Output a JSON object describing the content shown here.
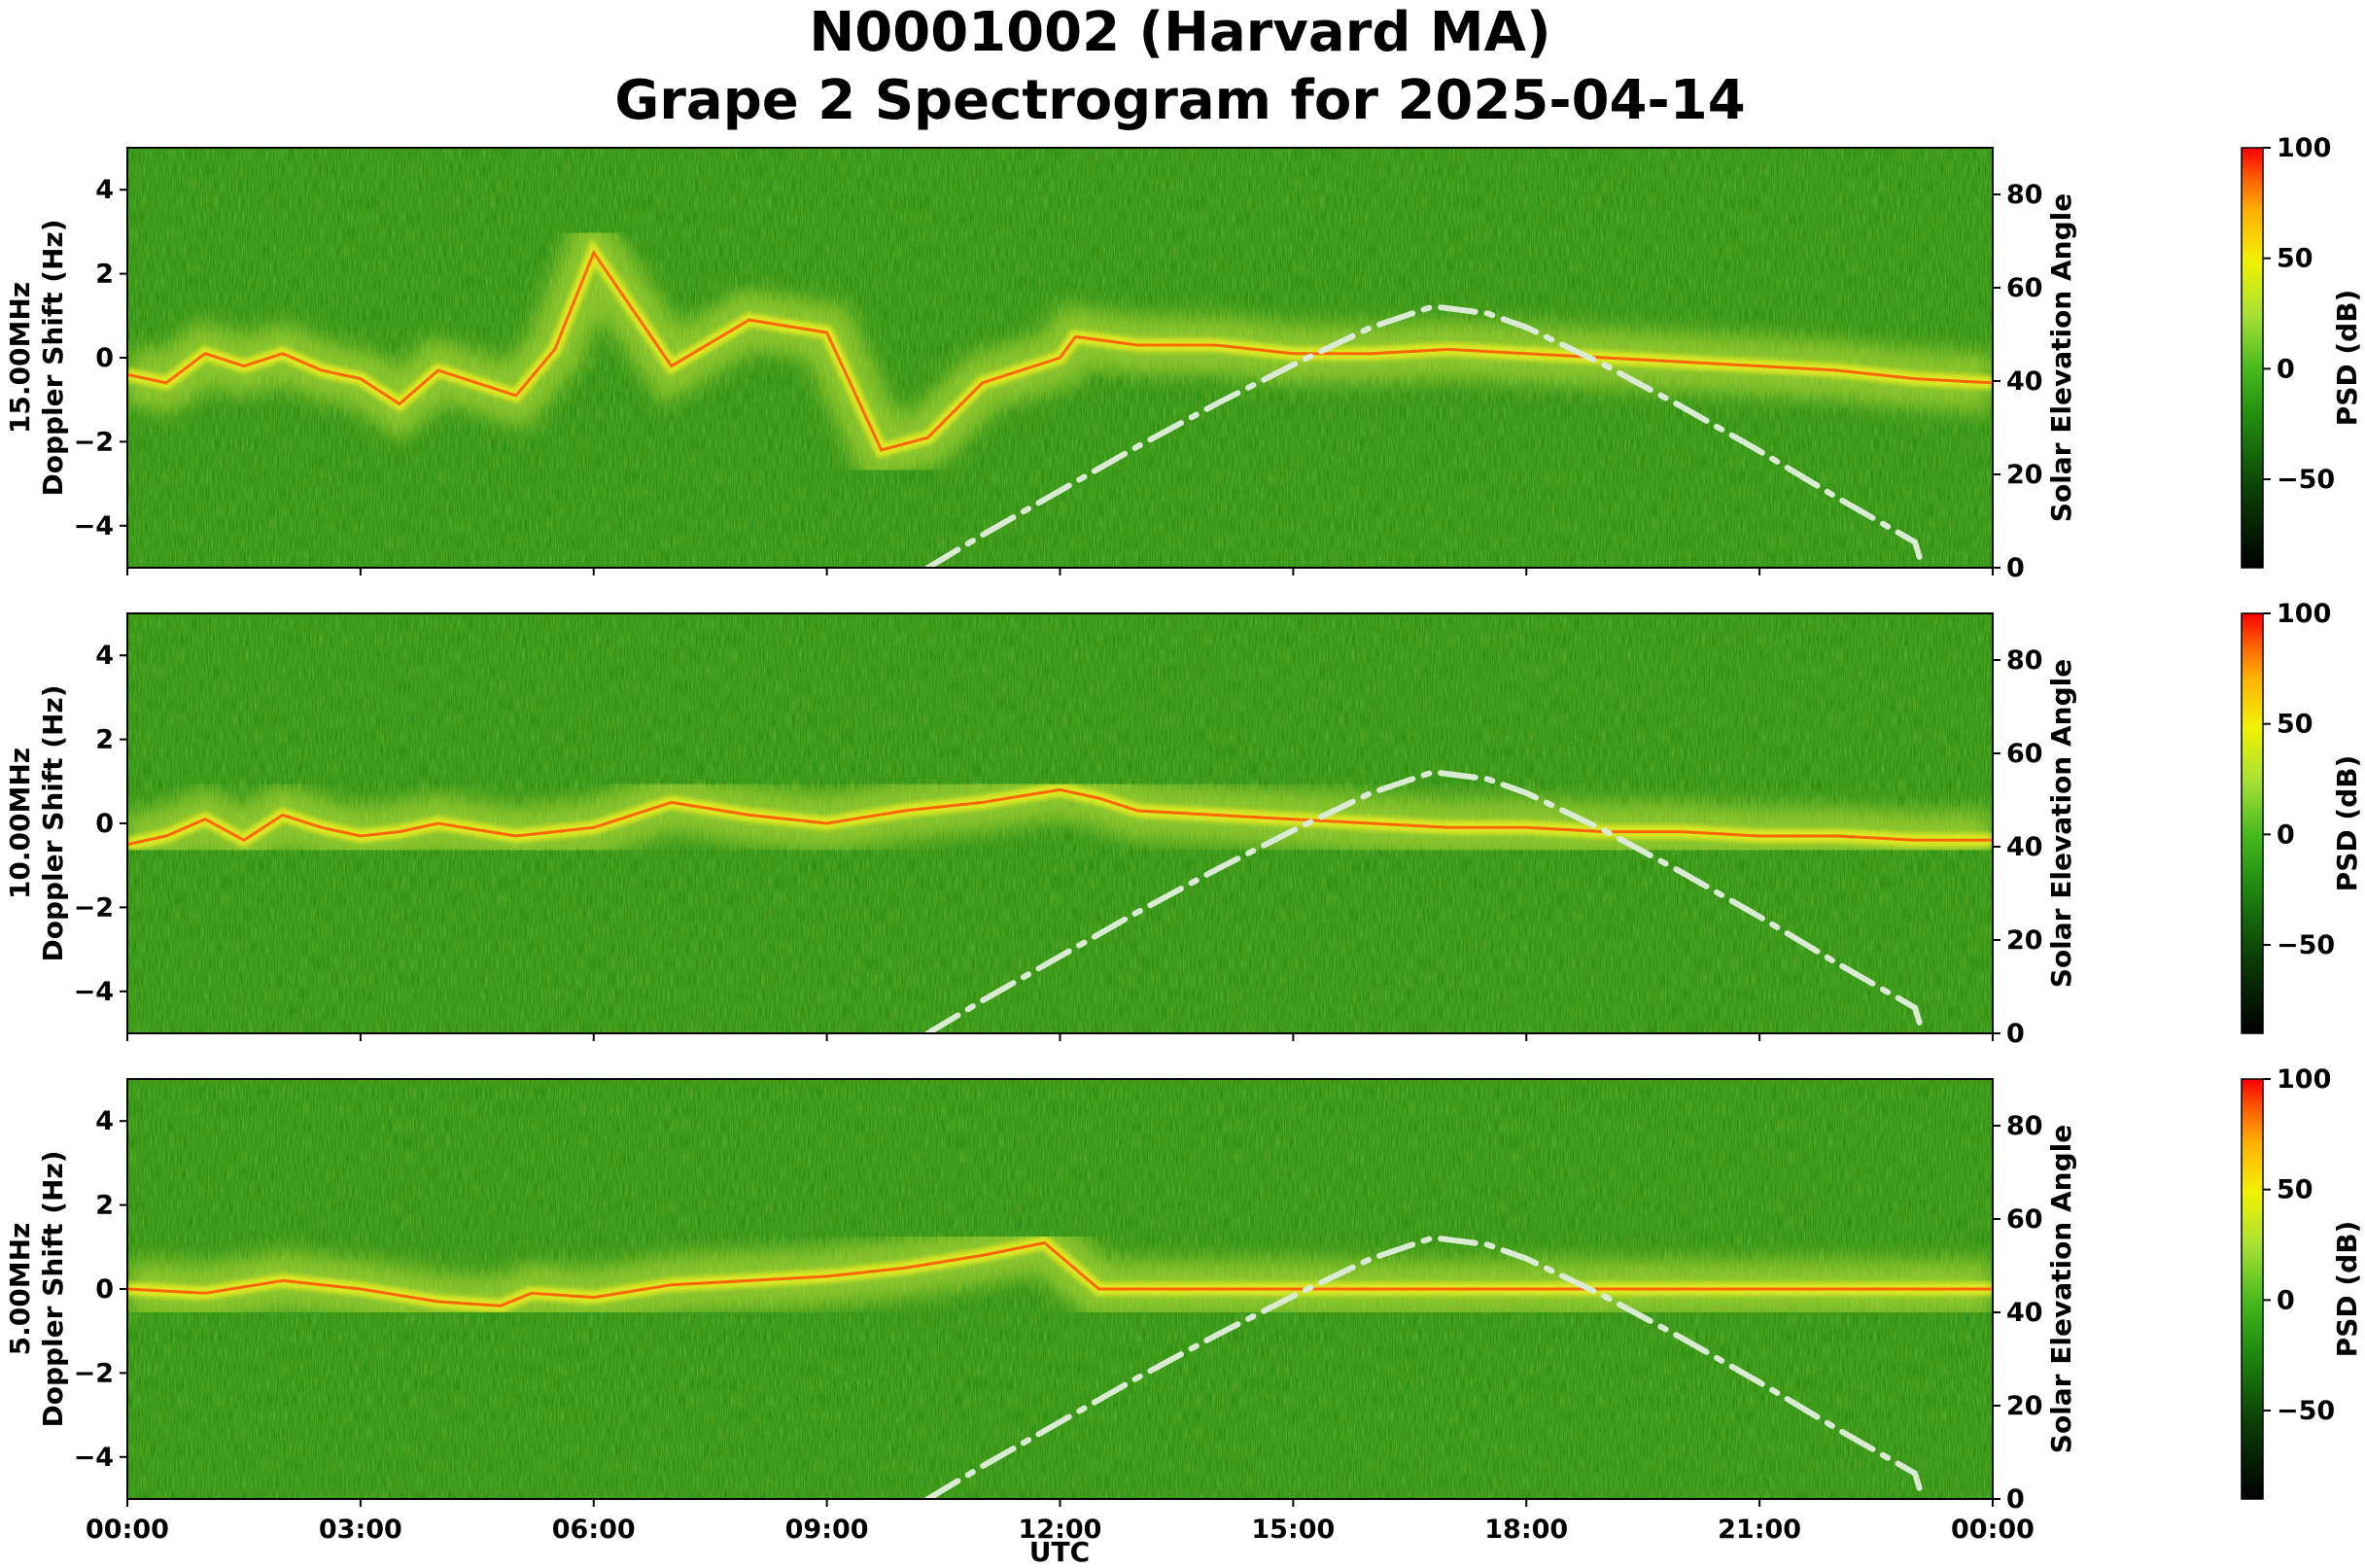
{
  "figure": {
    "title_line1": "N0001002 (Harvard MA)",
    "title_line2": "Grape 2 Spectrogram for 2025-04-14"
  },
  "colors": {
    "spectrogram_base": "#2e8f12",
    "solar_curve": "#d9ecd3",
    "colorbar_stops": [
      "#000000",
      "#0b3d06",
      "#1f8a0f",
      "#46b81c",
      "#a6e034",
      "#f2f200",
      "#ffb000",
      "#ff5a00",
      "#ff0000"
    ]
  },
  "chart_data": {
    "type": "heatmap",
    "x_axis_label": "UTC",
    "x_ticks": [
      "00:00",
      "03:00",
      "06:00",
      "09:00",
      "12:00",
      "15:00",
      "18:00",
      "21:00",
      "00:00"
    ],
    "x_range_hours": [
      0,
      24
    ],
    "y_ticks_left": [
      "−4",
      "−2",
      "0",
      "2",
      "4"
    ],
    "y_tick_values_left": [
      -4,
      -2,
      0,
      2,
      4
    ],
    "y_range_left": [
      -5,
      5
    ],
    "y_ticks_right": [
      "0",
      "20",
      "40",
      "60",
      "80"
    ],
    "y_tick_values_right": [
      0,
      20,
      40,
      60,
      80
    ],
    "y_range_right": [
      0,
      90
    ],
    "right_axis_label": "Solar Elevation Angle",
    "colorbar": {
      "label": "PSD (dB)",
      "ticks": [
        "100",
        "50",
        "0",
        "−50"
      ],
      "tick_values": [
        100,
        50,
        0,
        -50
      ],
      "range": [
        -90,
        100
      ]
    },
    "solar_elevation": {
      "line_style": "dash-dot",
      "hours": [
        10.3,
        11,
        12,
        13,
        14,
        15,
        16,
        16.8,
        17.5,
        18,
        19,
        20,
        21,
        22,
        23,
        23.1
      ],
      "degrees": [
        0,
        7,
        16.5,
        26,
        35,
        43.5,
        51.5,
        56,
        54.5,
        51.5,
        43.5,
        34.5,
        25,
        15,
        5.5,
        0
      ]
    },
    "panels": [
      {
        "ylabel_freq": "15.00MHz",
        "ylabel_axis": "Doppler Shift (Hz)",
        "trace_hours": [
          0,
          0.5,
          1,
          1.5,
          2,
          2.5,
          3,
          3.5,
          4,
          5,
          5.5,
          6,
          7,
          8,
          9,
          9.7,
          10.3,
          11,
          12,
          12.2,
          13,
          14,
          15,
          16,
          17,
          18,
          19,
          20,
          21,
          22,
          23,
          24
        ],
        "trace_hz": [
          -0.4,
          -0.6,
          0.1,
          -0.2,
          0.1,
          -0.3,
          -0.5,
          -1.1,
          -0.3,
          -0.9,
          0.2,
          2.5,
          -0.2,
          0.9,
          0.6,
          -2.2,
          -1.9,
          -0.6,
          0.0,
          0.5,
          0.3,
          0.3,
          0.1,
          0.1,
          0.2,
          0.1,
          0.0,
          -0.1,
          -0.2,
          -0.3,
          -0.5,
          -0.6
        ]
      },
      {
        "ylabel_freq": "10.00MHz",
        "ylabel_axis": "Doppler Shift (Hz)",
        "trace_hours": [
          0,
          0.5,
          1,
          1.5,
          2,
          2.5,
          3,
          3.5,
          4,
          5,
          6,
          7,
          8,
          9,
          10,
          11,
          12,
          12.5,
          13,
          14,
          15,
          16,
          17,
          18,
          19,
          20,
          21,
          22,
          23,
          24
        ],
        "trace_hz": [
          -0.5,
          -0.3,
          0.1,
          -0.4,
          0.2,
          -0.1,
          -0.3,
          -0.2,
          0.0,
          -0.3,
          -0.1,
          0.5,
          0.2,
          0.0,
          0.3,
          0.5,
          0.8,
          0.6,
          0.3,
          0.2,
          0.1,
          0.0,
          -0.1,
          -0.1,
          -0.2,
          -0.2,
          -0.3,
          -0.3,
          -0.4,
          -0.4
        ]
      },
      {
        "ylabel_freq": "5.00MHz",
        "ylabel_axis": "Doppler Shift (Hz)",
        "trace_hours": [
          0,
          1,
          2,
          3,
          4,
          4.8,
          5.2,
          6,
          7,
          8,
          9,
          10,
          11,
          11.8,
          12.5,
          14,
          16,
          18,
          20,
          22,
          24
        ],
        "trace_hz": [
          0.0,
          -0.1,
          0.2,
          0.0,
          -0.3,
          -0.4,
          -0.1,
          -0.2,
          0.1,
          0.2,
          0.3,
          0.5,
          0.8,
          1.1,
          0.0,
          0.0,
          0.0,
          0.0,
          0.0,
          0.0,
          0.0
        ]
      }
    ]
  }
}
